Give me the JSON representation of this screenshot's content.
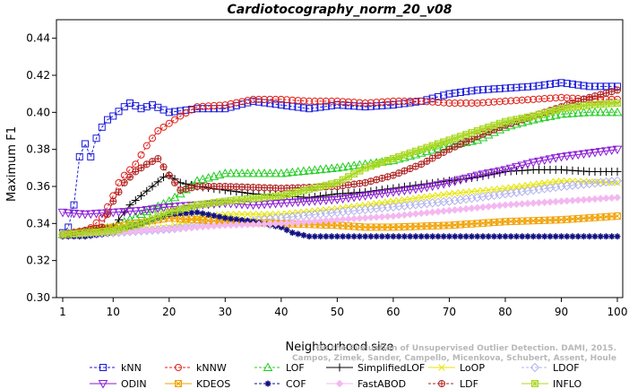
{
  "chart_data": {
    "type": "line",
    "title": "Cardiotocography_norm_20_v08",
    "xlabel": "Neighborhood size",
    "ylabel": "Maximum F1",
    "xlim": [
      1,
      100
    ],
    "ylim": [
      0.3,
      0.45
    ],
    "x_ticks": [
      1,
      10,
      20,
      30,
      40,
      50,
      60,
      70,
      80,
      90,
      100
    ],
    "y_ticks": [
      0.3,
      0.32,
      0.34,
      0.36,
      0.38,
      0.4,
      0.42,
      0.44
    ],
    "x_tick_labels": [
      "1",
      "10",
      "20",
      "30",
      "40",
      "50",
      "60",
      "70",
      "80",
      "90",
      "100"
    ],
    "y_tick_labels": [
      "0.30",
      "0.32",
      "0.34",
      "0.36",
      "0.38",
      "0.40",
      "0.42",
      "0.44"
    ],
    "grid": false,
    "legend_position": "bottom",
    "watermark": [
      "Campos, Zimek, Sander, Campello, Micenkova, Schubert, Assent, Houle",
      "On the Evaluation of Unsupervised Outlier Detection. DAMI, 2015."
    ],
    "series": [
      {
        "name": "kNN",
        "color": "#1a1adb",
        "marker": "square",
        "dashed": true,
        "points": [
          [
            1,
            0.335
          ],
          [
            2,
            0.338
          ],
          [
            3,
            0.35
          ],
          [
            4,
            0.376
          ],
          [
            5,
            0.383
          ],
          [
            6,
            0.376
          ],
          [
            7,
            0.386
          ],
          [
            8,
            0.392
          ],
          [
            9,
            0.396
          ],
          [
            10,
            0.398
          ],
          [
            12,
            0.403
          ],
          [
            13,
            0.405
          ],
          [
            15,
            0.402
          ],
          [
            17,
            0.404
          ],
          [
            20,
            0.4
          ],
          [
            25,
            0.402
          ],
          [
            30,
            0.402
          ],
          [
            35,
            0.406
          ],
          [
            40,
            0.404
          ],
          [
            45,
            0.402
          ],
          [
            50,
            0.404
          ],
          [
            55,
            0.403
          ],
          [
            60,
            0.404
          ],
          [
            65,
            0.406
          ],
          [
            70,
            0.41
          ],
          [
            75,
            0.412
          ],
          [
            80,
            0.413
          ],
          [
            85,
            0.414
          ],
          [
            90,
            0.416
          ],
          [
            95,
            0.414
          ],
          [
            100,
            0.414
          ]
        ]
      },
      {
        "name": "kNNW",
        "color": "#e0201a",
        "marker": "circle",
        "dashed": true,
        "points": [
          [
            1,
            0.334
          ],
          [
            5,
            0.335
          ],
          [
            8,
            0.343
          ],
          [
            10,
            0.355
          ],
          [
            11,
            0.362
          ],
          [
            12,
            0.366
          ],
          [
            14,
            0.372
          ],
          [
            16,
            0.382
          ],
          [
            18,
            0.39
          ],
          [
            20,
            0.394
          ],
          [
            22,
            0.398
          ],
          [
            25,
            0.403
          ],
          [
            30,
            0.404
          ],
          [
            35,
            0.407
          ],
          [
            40,
            0.407
          ],
          [
            45,
            0.406
          ],
          [
            50,
            0.406
          ],
          [
            55,
            0.405
          ],
          [
            60,
            0.406
          ],
          [
            65,
            0.406
          ],
          [
            70,
            0.405
          ],
          [
            75,
            0.405
          ],
          [
            80,
            0.406
          ],
          [
            85,
            0.407
          ],
          [
            90,
            0.408
          ],
          [
            95,
            0.407
          ],
          [
            100,
            0.407
          ]
        ]
      },
      {
        "name": "LOF",
        "color": "#22cc22",
        "marker": "triangle-up",
        "dashed": true,
        "points": [
          [
            1,
            0.334
          ],
          [
            10,
            0.338
          ],
          [
            15,
            0.345
          ],
          [
            20,
            0.352
          ],
          [
            22,
            0.356
          ],
          [
            25,
            0.363
          ],
          [
            30,
            0.367
          ],
          [
            40,
            0.367
          ],
          [
            50,
            0.37
          ],
          [
            55,
            0.372
          ],
          [
            60,
            0.374
          ],
          [
            65,
            0.378
          ],
          [
            70,
            0.382
          ],
          [
            75,
            0.385
          ],
          [
            80,
            0.392
          ],
          [
            85,
            0.396
          ],
          [
            90,
            0.399
          ],
          [
            95,
            0.4
          ],
          [
            100,
            0.4
          ]
        ]
      },
      {
        "name": "SimplifiedLOF",
        "color": "#000000",
        "marker": "plus",
        "dashed": false,
        "points": [
          [
            1,
            0.334
          ],
          [
            5,
            0.334
          ],
          [
            10,
            0.338
          ],
          [
            13,
            0.35
          ],
          [
            15,
            0.355
          ],
          [
            17,
            0.36
          ],
          [
            19,
            0.365
          ],
          [
            20,
            0.366
          ],
          [
            22,
            0.362
          ],
          [
            25,
            0.36
          ],
          [
            30,
            0.358
          ],
          [
            35,
            0.356
          ],
          [
            40,
            0.355
          ],
          [
            45,
            0.354
          ],
          [
            50,
            0.356
          ],
          [
            55,
            0.357
          ],
          [
            60,
            0.359
          ],
          [
            65,
            0.361
          ],
          [
            70,
            0.363
          ],
          [
            75,
            0.365
          ],
          [
            80,
            0.368
          ],
          [
            85,
            0.369
          ],
          [
            90,
            0.369
          ],
          [
            95,
            0.368
          ],
          [
            100,
            0.368
          ]
        ]
      },
      {
        "name": "LoOP",
        "color": "#e6e600",
        "marker": "x",
        "dashed": false,
        "points": [
          [
            1,
            0.334
          ],
          [
            10,
            0.336
          ],
          [
            20,
            0.338
          ],
          [
            25,
            0.343
          ],
          [
            30,
            0.345
          ],
          [
            40,
            0.345
          ],
          [
            50,
            0.348
          ],
          [
            60,
            0.352
          ],
          [
            70,
            0.356
          ],
          [
            80,
            0.359
          ],
          [
            90,
            0.363
          ],
          [
            100,
            0.362
          ]
        ]
      },
      {
        "name": "LDOF",
        "color": "#b4b4ee",
        "marker": "diamond",
        "dashed": true,
        "points": [
          [
            1,
            0.334
          ],
          [
            10,
            0.335
          ],
          [
            20,
            0.337
          ],
          [
            30,
            0.34
          ],
          [
            40,
            0.343
          ],
          [
            50,
            0.346
          ],
          [
            60,
            0.349
          ],
          [
            70,
            0.352
          ],
          [
            80,
            0.356
          ],
          [
            90,
            0.36
          ],
          [
            100,
            0.363
          ]
        ]
      },
      {
        "name": "ODIN",
        "color": "#8a1ad6",
        "marker": "triangle-down",
        "dashed": false,
        "points": [
          [
            1,
            0.346
          ],
          [
            5,
            0.345
          ],
          [
            10,
            0.346
          ],
          [
            15,
            0.347
          ],
          [
            20,
            0.349
          ],
          [
            25,
            0.35
          ],
          [
            30,
            0.351
          ],
          [
            35,
            0.35
          ],
          [
            40,
            0.351
          ],
          [
            45,
            0.352
          ],
          [
            50,
            0.353
          ],
          [
            55,
            0.355
          ],
          [
            60,
            0.357
          ],
          [
            65,
            0.359
          ],
          [
            70,
            0.362
          ],
          [
            75,
            0.366
          ],
          [
            80,
            0.369
          ],
          [
            85,
            0.373
          ],
          [
            90,
            0.376
          ],
          [
            95,
            0.378
          ],
          [
            100,
            0.38
          ]
        ]
      },
      {
        "name": "KDEOS",
        "color": "#f0a000",
        "marker": "square-x",
        "dashed": false,
        "points": [
          [
            1,
            0.334
          ],
          [
            10,
            0.338
          ],
          [
            20,
            0.343
          ],
          [
            25,
            0.342
          ],
          [
            30,
            0.341
          ],
          [
            40,
            0.34
          ],
          [
            50,
            0.339
          ],
          [
            55,
            0.338
          ],
          [
            60,
            0.338
          ],
          [
            70,
            0.339
          ],
          [
            80,
            0.341
          ],
          [
            90,
            0.342
          ],
          [
            100,
            0.344
          ]
        ]
      },
      {
        "name": "COF",
        "color": "#101080",
        "marker": "asterisk",
        "dashed": true,
        "points": [
          [
            1,
            0.333
          ],
          [
            5,
            0.333
          ],
          [
            10,
            0.335
          ],
          [
            15,
            0.34
          ],
          [
            20,
            0.345
          ],
          [
            25,
            0.346
          ],
          [
            30,
            0.343
          ],
          [
            35,
            0.341
          ],
          [
            40,
            0.338
          ],
          [
            42,
            0.335
          ],
          [
            45,
            0.333
          ],
          [
            50,
            0.333
          ],
          [
            60,
            0.333
          ],
          [
            70,
            0.333
          ],
          [
            80,
            0.333
          ],
          [
            90,
            0.333
          ],
          [
            100,
            0.333
          ]
        ]
      },
      {
        "name": "FastABOD",
        "color": "#f4b8f0",
        "marker": "diamond-filled",
        "dashed": false,
        "points": [
          [
            1,
            0.334
          ],
          [
            10,
            0.335
          ],
          [
            20,
            0.337
          ],
          [
            30,
            0.339
          ],
          [
            40,
            0.34
          ],
          [
            50,
            0.342
          ],
          [
            60,
            0.344
          ],
          [
            70,
            0.347
          ],
          [
            80,
            0.35
          ],
          [
            90,
            0.352
          ],
          [
            100,
            0.354
          ]
        ]
      },
      {
        "name": "LDF",
        "color": "#b02020",
        "marker": "circle-plus",
        "dashed": true,
        "points": [
          [
            1,
            0.334
          ],
          [
            8,
            0.338
          ],
          [
            10,
            0.352
          ],
          [
            12,
            0.362
          ],
          [
            14,
            0.368
          ],
          [
            16,
            0.372
          ],
          [
            18,
            0.375
          ],
          [
            20,
            0.366
          ],
          [
            22,
            0.358
          ],
          [
            25,
            0.36
          ],
          [
            30,
            0.36
          ],
          [
            40,
            0.359
          ],
          [
            50,
            0.36
          ],
          [
            55,
            0.362
          ],
          [
            60,
            0.366
          ],
          [
            65,
            0.372
          ],
          [
            70,
            0.38
          ],
          [
            75,
            0.387
          ],
          [
            80,
            0.393
          ],
          [
            85,
            0.398
          ],
          [
            90,
            0.403
          ],
          [
            95,
            0.408
          ],
          [
            100,
            0.412
          ]
        ]
      },
      {
        "name": "INFLO",
        "color": "#a8d820",
        "marker": "square-star",
        "dashed": false,
        "points": [
          [
            1,
            0.334
          ],
          [
            10,
            0.336
          ],
          [
            15,
            0.34
          ],
          [
            20,
            0.346
          ],
          [
            25,
            0.35
          ],
          [
            30,
            0.352
          ],
          [
            40,
            0.355
          ],
          [
            50,
            0.362
          ],
          [
            55,
            0.37
          ],
          [
            60,
            0.375
          ],
          [
            65,
            0.38
          ],
          [
            70,
            0.385
          ],
          [
            75,
            0.39
          ],
          [
            80,
            0.395
          ],
          [
            85,
            0.398
          ],
          [
            90,
            0.402
          ],
          [
            95,
            0.404
          ],
          [
            100,
            0.405
          ]
        ]
      }
    ]
  }
}
